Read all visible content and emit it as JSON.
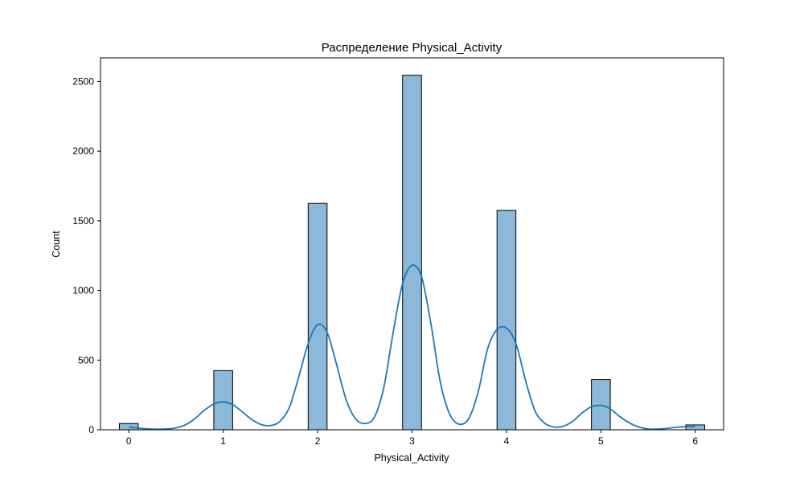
{
  "chart_data": {
    "type": "bar",
    "title": "Распределение Physical_Activity",
    "xlabel": "Physical_Activity",
    "ylabel": "Count",
    "xlim": [
      -0.3,
      6.3
    ],
    "ylim": [
      0,
      2670
    ],
    "xticks": [
      0,
      1,
      2,
      3,
      4,
      5,
      6
    ],
    "yticks": [
      0,
      500,
      1000,
      1500,
      2000,
      2500
    ],
    "grid": false,
    "bin_width": 0.2,
    "bins": [
      {
        "x": 0,
        "count": 45
      },
      {
        "x": 1,
        "count": 425
      },
      {
        "x": 2,
        "count": 1625
      },
      {
        "x": 3,
        "count": 2545
      },
      {
        "x": 4,
        "count": 1575
      },
      {
        "x": 5,
        "count": 360
      },
      {
        "x": 6,
        "count": 35
      }
    ],
    "kde": {
      "x": [
        0.0,
        0.1,
        0.2,
        0.3,
        0.4,
        0.5,
        0.6,
        0.7,
        0.8,
        0.9,
        1.0,
        1.1,
        1.2,
        1.3,
        1.4,
        1.5,
        1.6,
        1.7,
        1.8,
        1.9,
        2.0,
        2.1,
        2.2,
        2.3,
        2.4,
        2.5,
        2.6,
        2.7,
        2.8,
        2.9,
        3.0,
        3.1,
        3.2,
        3.3,
        3.4,
        3.5,
        3.6,
        3.7,
        3.8,
        3.9,
        4.0,
        4.1,
        4.2,
        4.3,
        4.4,
        4.5,
        4.6,
        4.7,
        4.8,
        4.9,
        5.0,
        5.1,
        5.2,
        5.3,
        5.4,
        5.5,
        5.6,
        5.7,
        5.8,
        5.9,
        6.0
      ],
      "y": [
        20,
        12,
        6,
        4,
        6,
        14,
        36,
        80,
        140,
        185,
        200,
        180,
        130,
        75,
        38,
        30,
        60,
        160,
        380,
        620,
        755,
        700,
        470,
        220,
        80,
        45,
        90,
        300,
        700,
        1050,
        1180,
        1100,
        760,
        340,
        110,
        40,
        80,
        270,
        580,
        720,
        730,
        620,
        360,
        140,
        50,
        20,
        25,
        60,
        120,
        165,
        175,
        150,
        95,
        50,
        20,
        6,
        5,
        10,
        18,
        22,
        22
      ]
    },
    "colors": {
      "bar_fill": "#8cb8d9",
      "bar_edge": "#000000",
      "kde_line": "#1f77b4"
    }
  }
}
